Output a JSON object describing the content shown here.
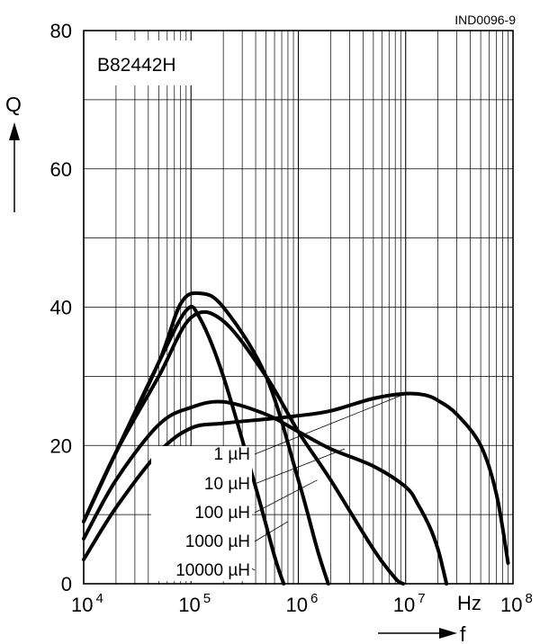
{
  "chart_data": {
    "type": "line",
    "title": "B82442H",
    "reference": "IND0096-9",
    "xlabel": "f",
    "xunit": "Hz",
    "ylabel": "Q",
    "x_scale": "log",
    "xlim": [
      10000,
      100000000
    ],
    "ylim": [
      0,
      80
    ],
    "x_ticks": [
      {
        "base": "10",
        "exp": "4"
      },
      {
        "base": "10",
        "exp": "5"
      },
      {
        "base": "10",
        "exp": "6"
      },
      {
        "base": "10",
        "exp": "7"
      },
      {
        "base": "10",
        "exp": "8"
      }
    ],
    "y_ticks": [
      "0",
      "20",
      "40",
      "60",
      "80"
    ],
    "grid": true,
    "series": [
      {
        "name": "1 µH",
        "x": [
          10000,
          20000,
          50000,
          100000,
          200000,
          500000,
          1000000,
          2000000,
          5000000,
          10000000,
          15000000,
          20000000,
          30000000,
          50000000,
          70000000,
          90000000
        ],
        "y": [
          3.5,
          11,
          19,
          22.5,
          23.2,
          23.8,
          24.3,
          25,
          26.8,
          27.5,
          27.3,
          26.5,
          24.5,
          20,
          13,
          3
        ]
      },
      {
        "name": "10 µH",
        "x": [
          10000,
          20000,
          50000,
          100000,
          200000,
          500000,
          1000000,
          2000000,
          5000000,
          10000000,
          13000000,
          17000000,
          20000000,
          22000000,
          24000000
        ],
        "y": [
          6.5,
          15,
          23,
          25.5,
          26.3,
          24.5,
          22,
          19.5,
          17,
          14,
          11.5,
          8,
          5,
          2.5,
          0
        ]
      },
      {
        "name": "100 µH",
        "x": [
          10000,
          20000,
          50000,
          100000,
          200000,
          500000,
          1000000,
          2000000,
          5000000,
          8000000,
          9500000
        ],
        "y": [
          9,
          19,
          30,
          38.5,
          38,
          30,
          22,
          15,
          5,
          0.8,
          0
        ]
      },
      {
        "name": "1000 µH",
        "x": [
          10000,
          20000,
          50000,
          80000,
          120000,
          200000,
          500000,
          1000000,
          1500000,
          1900000
        ],
        "y": [
          9,
          19,
          32,
          40.5,
          42,
          40,
          30,
          15,
          5,
          0
        ]
      },
      {
        "name": "10000 µH",
        "x": [
          10000,
          20000,
          50000,
          90000,
          120000,
          200000,
          400000,
          600000,
          730000
        ],
        "y": [
          9,
          19,
          32,
          39.5,
          38.5,
          30,
          14,
          4,
          0
        ]
      }
    ]
  }
}
